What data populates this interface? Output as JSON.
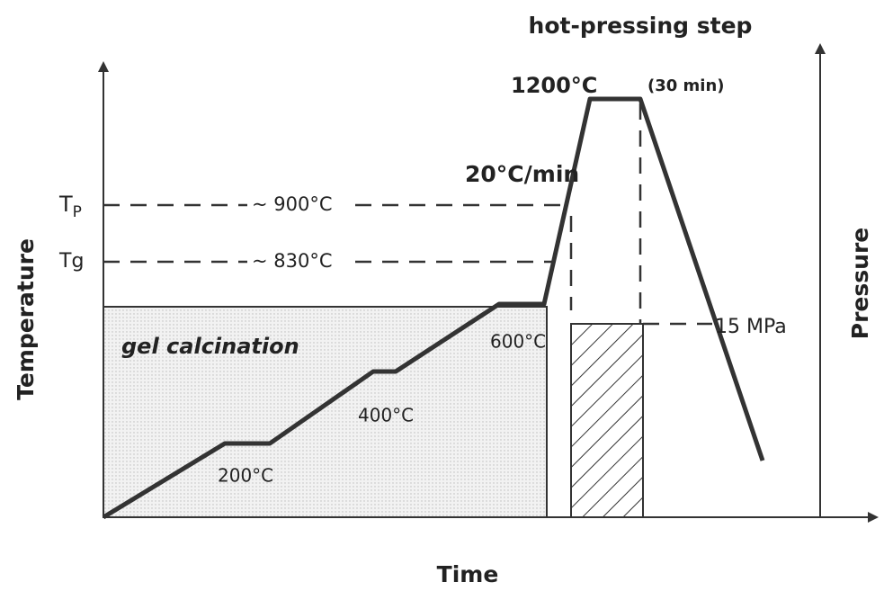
{
  "title": "hot-pressing step",
  "axes": {
    "x": "Time",
    "y_left": "Temperature",
    "y_right": "Pressure"
  },
  "levels": [
    {
      "symbol": {
        "main": "T",
        "sub": "P"
      },
      "label": "~ 900°C"
    },
    {
      "symbol": {
        "main": "Tg"
      },
      "label": "~ 830°C"
    }
  ],
  "annotations": {
    "peak": "1200°C",
    "hold": "(30 min)",
    "rate": "20°C/min",
    "region": "gel calcination",
    "step1": "200°C",
    "step2": "400°C",
    "step3": "600°C",
    "pressure": "15 MPa"
  }
}
